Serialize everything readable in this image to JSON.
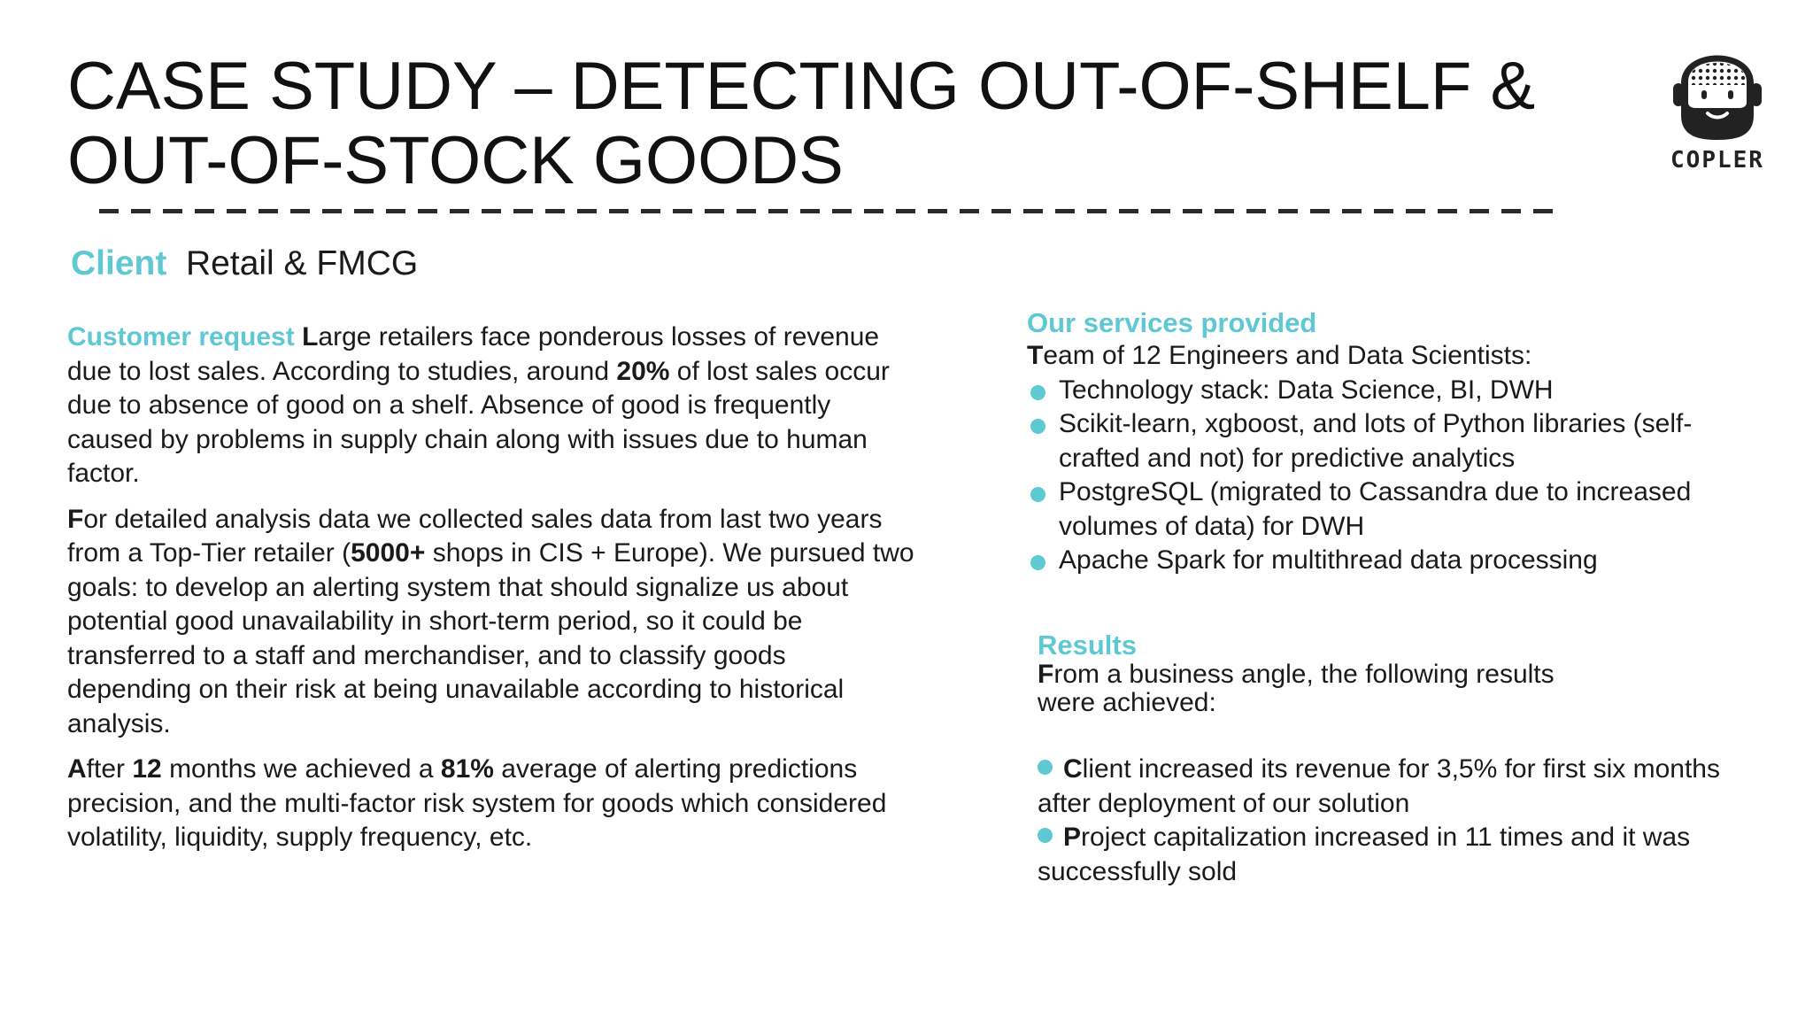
{
  "title": {
    "line1": "CASE STUDY – DETECTING OUT-OF-SHELF &",
    "line2": "OUT-OF-STOCK GOODS"
  },
  "logo": {
    "text": "COPLER",
    "icon": "bearded-face-logo-icon"
  },
  "client": {
    "label": "Client",
    "value": "Retail & FMCG"
  },
  "customer_request": {
    "label": "Customer request",
    "p1": {
      "first_letter": "L",
      "a": "arge retailers face ponderous losses of revenue due to lost sales. According to studies, around ",
      "b": "20%",
      "c": " of lost sales occur due to absence of good on a shelf. Absence of good is frequently caused by problems in supply chain along with issues due to human factor."
    },
    "p2": {
      "first_letter": "F",
      "a": "or detailed analysis data we collected sales data from last two years from a Top-Tier retailer (",
      "b": "5000+",
      "c": " shops in CIS + Europe). We pursued two goals: to develop an alerting system that should signalize us about potential good unavailability in short-term period, so it could be transferred to a staff and merchandiser, and to classify goods depending on their risk at being unavailable according to historical analysis."
    },
    "p3": {
      "first_letter": "A",
      "a": "fter ",
      "b": "12",
      "c": " months we achieved a ",
      "d": "81%",
      "e": " average of alerting predictions precision, and the multi-factor risk system for goods which considered volatility, liquidity, supply frequency, etc."
    }
  },
  "services": {
    "label": "Our services provided",
    "team_first_letter": "T",
    "team_rest": "eam of 12 Engineers and Data Scientists:",
    "items": [
      "Technology stack: Data Science, BI, DWH",
      "Scikit-learn, xgboost, and lots of Python libraries (self-crafted and not)  for predictive analytics",
      "PostgreSQL (migrated to Cassandra due to increased volumes of data) for DWH",
      "Apache Spark for multithread data processing"
    ]
  },
  "results": {
    "label": "Results",
    "intro_first_letter": "F",
    "intro_line1": "rom a business angle, the following results",
    "intro_line2": "were achieved:",
    "items": [
      {
        "first_letter": "C",
        "rest": "lient increased its revenue for 3,5% for first six months after deployment of our solution"
      },
      {
        "first_letter": "P",
        "rest": "roject capitalization increased in 11 times and it was successfully sold"
      }
    ]
  },
  "colors": {
    "accent": "#5ec8d3",
    "text": "#1a1a1a"
  }
}
